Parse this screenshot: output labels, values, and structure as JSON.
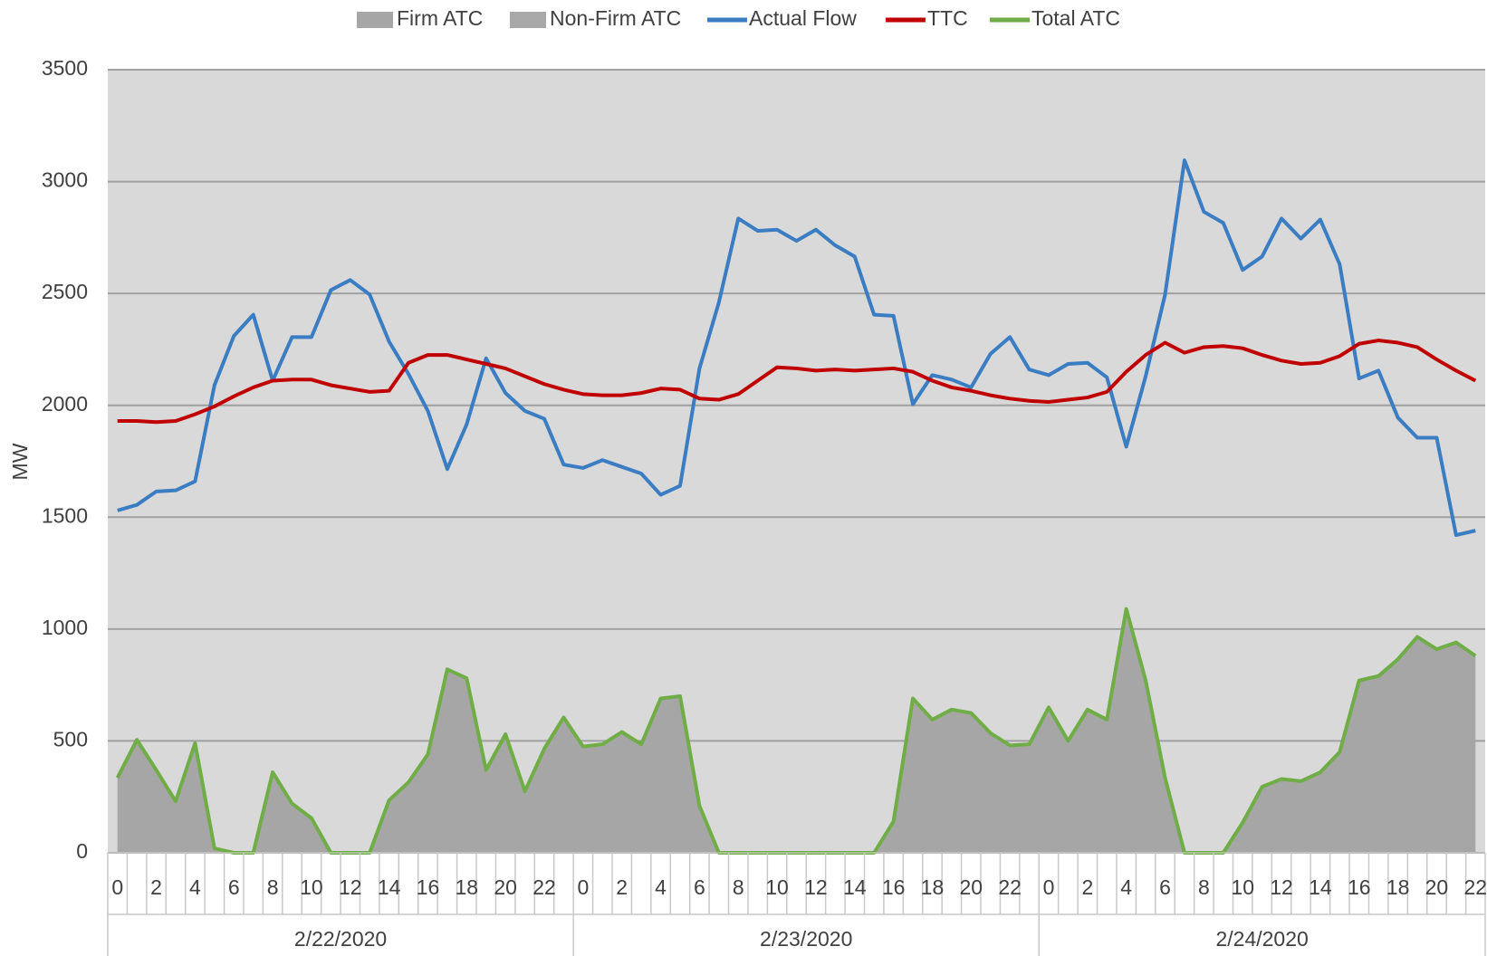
{
  "chart_data": {
    "type": "line",
    "ylabel": "MW",
    "ylim": [
      0,
      3500
    ],
    "yticks": [
      0,
      500,
      1000,
      1500,
      2000,
      2500,
      3000,
      3500
    ],
    "grid": true,
    "legend": "top",
    "categories": [
      0,
      null,
      2,
      null,
      4,
      null,
      6,
      null,
      8,
      null,
      10,
      null,
      12,
      null,
      14,
      null,
      16,
      null,
      18,
      null,
      20,
      null,
      22,
      null,
      0,
      null,
      2,
      null,
      4,
      null,
      6,
      null,
      8,
      null,
      10,
      null,
      12,
      null,
      14,
      null,
      16,
      null,
      18,
      null,
      20,
      null,
      22,
      null,
      0,
      null,
      2,
      null,
      4,
      null,
      6,
      null,
      8,
      null,
      10,
      null,
      12,
      null,
      14,
      null,
      16,
      null,
      18,
      null,
      20,
      null,
      22
    ],
    "groups": [
      "2/22/2020",
      "2/23/2020",
      "2/24/2020"
    ],
    "series": [
      {
        "name": "Firm ATC",
        "kind": "area",
        "color": "#a6a6a6",
        "values": [
          335,
          505,
          370,
          230,
          490,
          20,
          0,
          0,
          360,
          220,
          155,
          0,
          0,
          0,
          235,
          315,
          440,
          820,
          780,
          370,
          530,
          275,
          465,
          605,
          475,
          485,
          540,
          485,
          690,
          700,
          210,
          0,
          0,
          0,
          0,
          0,
          0,
          0,
          0,
          0,
          140,
          690,
          595,
          640,
          625,
          535,
          480,
          485,
          650,
          500,
          640,
          595,
          1090,
          770,
          335,
          0,
          0,
          0,
          135,
          295,
          330,
          320,
          360,
          450,
          770,
          790,
          865,
          965,
          910,
          940,
          880
        ]
      },
      {
        "name": "Non-Firm ATC",
        "kind": "area",
        "color": "#a8a8a8",
        "values": [
          0,
          0,
          0,
          0,
          0,
          0,
          0,
          0,
          0,
          0,
          0,
          0,
          0,
          0,
          0,
          0,
          0,
          0,
          0,
          0,
          0,
          0,
          0,
          0,
          0,
          0,
          0,
          0,
          0,
          0,
          0,
          0,
          0,
          0,
          0,
          0,
          0,
          0,
          0,
          0,
          0,
          0,
          0,
          0,
          0,
          0,
          0,
          0,
          0,
          0,
          0,
          0,
          0,
          0,
          0,
          0,
          0,
          0,
          0,
          0,
          0,
          0,
          0,
          0,
          0,
          0,
          0,
          0,
          0,
          0,
          0
        ]
      },
      {
        "name": "Actual Flow",
        "kind": "line",
        "color": "#3a7dc2",
        "values": [
          1530,
          1555,
          1615,
          1620,
          1660,
          2090,
          2310,
          2405,
          2110,
          2305,
          2305,
          2515,
          2560,
          2495,
          2285,
          2140,
          1975,
          1715,
          1915,
          2210,
          2055,
          1975,
          1940,
          1735,
          1720,
          1755,
          1725,
          1695,
          1600,
          1640,
          2165,
          2460,
          2835,
          2780,
          2785,
          2735,
          2785,
          2715,
          2665,
          2405,
          2400,
          2005,
          2135,
          2115,
          2080,
          2230,
          2305,
          2160,
          2135,
          2185,
          2190,
          2125,
          1815,
          2130,
          2495,
          3095,
          2865,
          2815,
          2605,
          2665,
          2835,
          2745,
          2830,
          2630,
          2120,
          2155,
          1945,
          1855,
          1855,
          1420,
          1440
        ]
      },
      {
        "name": "TTC",
        "kind": "line",
        "color": "#c00000",
        "values": [
          1930,
          1930,
          1925,
          1930,
          1960,
          1995,
          2040,
          2080,
          2110,
          2115,
          2115,
          2090,
          2075,
          2060,
          2065,
          2190,
          2225,
          2225,
          2205,
          2185,
          2165,
          2130,
          2095,
          2070,
          2050,
          2045,
          2045,
          2055,
          2075,
          2070,
          2030,
          2025,
          2050,
          2110,
          2170,
          2165,
          2155,
          2160,
          2155,
          2160,
          2165,
          2150,
          2110,
          2080,
          2065,
          2045,
          2030,
          2020,
          2015,
          2025,
          2035,
          2060,
          2150,
          2225,
          2280,
          2235,
          2260,
          2265,
          2255,
          2225,
          2200,
          2185,
          2190,
          2220,
          2275,
          2290,
          2280,
          2260,
          2205,
          2155,
          2110
        ]
      },
      {
        "name": "Total ATC",
        "kind": "line",
        "color": "#70ad47",
        "values": [
          335,
          505,
          370,
          230,
          490,
          20,
          0,
          0,
          360,
          220,
          155,
          0,
          0,
          0,
          235,
          315,
          440,
          820,
          780,
          370,
          530,
          275,
          465,
          605,
          475,
          485,
          540,
          485,
          690,
          700,
          210,
          0,
          0,
          0,
          0,
          0,
          0,
          0,
          0,
          0,
          140,
          690,
          595,
          640,
          625,
          535,
          480,
          485,
          650,
          500,
          640,
          595,
          1090,
          770,
          335,
          0,
          0,
          0,
          135,
          295,
          330,
          320,
          360,
          450,
          770,
          790,
          865,
          965,
          910,
          940,
          880
        ]
      }
    ]
  }
}
